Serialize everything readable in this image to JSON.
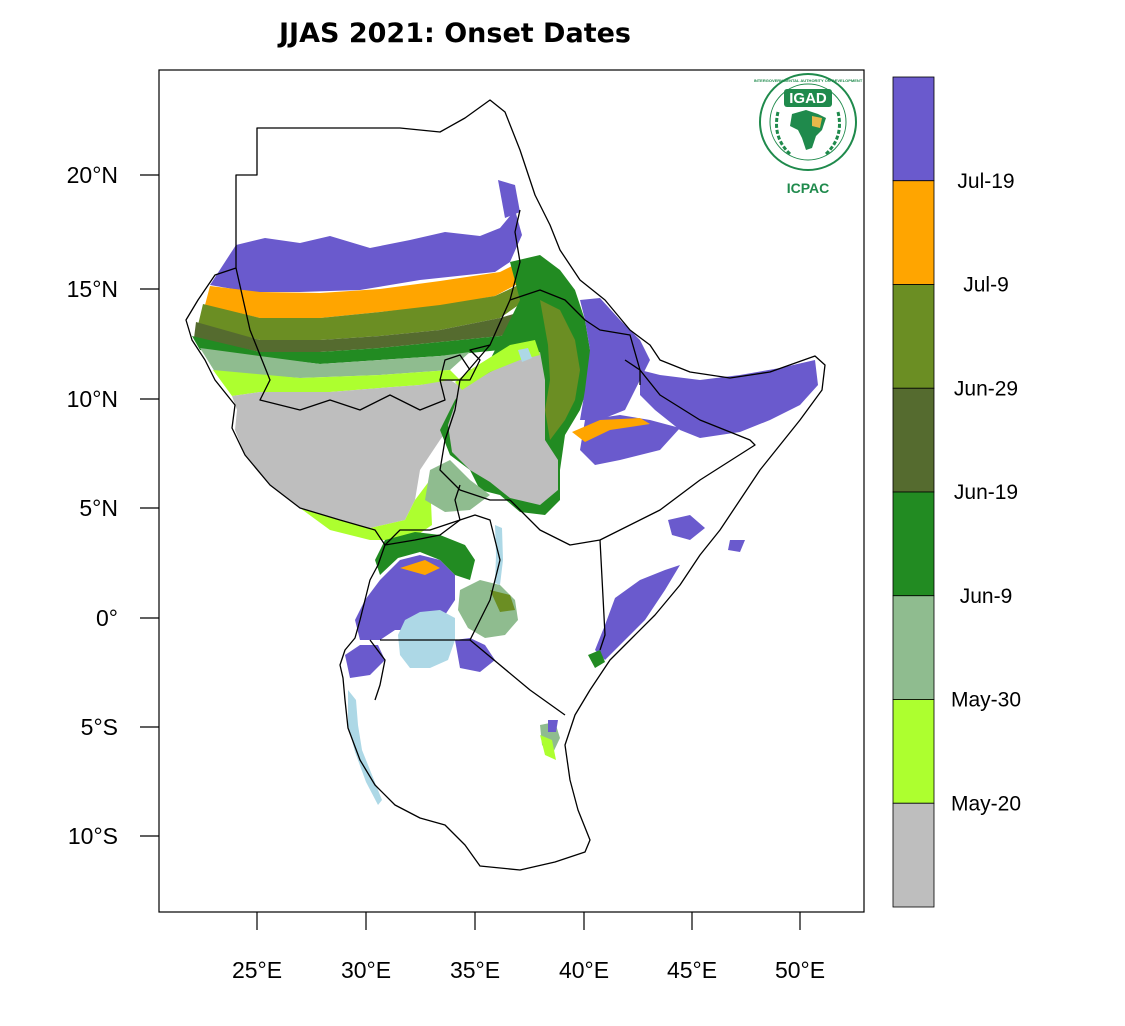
{
  "title": "JJAS 2021: Onset Dates",
  "logo": {
    "top_text": "IGAD",
    "bottom_text": "ICPAC",
    "ring_text": "INTERGOVERNMENTAL AUTHORITY ON DEVELOPMENT",
    "color": "#1f8a4c"
  },
  "axes": {
    "lat_ticks": [
      "20°N",
      "15°N",
      "10°N",
      "5°N",
      "0°",
      "5°S",
      "10°S"
    ],
    "lon_ticks": [
      "25°E",
      "30°E",
      "35°E",
      "40°E",
      "45°E",
      "50°E"
    ]
  },
  "legend": {
    "boundaries": [
      "Jul-19",
      "Jul-9",
      "Jun-29",
      "Jun-19",
      "Jun-9",
      "May-30",
      "May-20"
    ],
    "bins": [
      {
        "color": "#6a5acd",
        "range": "after Jul-19"
      },
      {
        "color": "#ffa500",
        "range": "Jul-9 to Jul-19"
      },
      {
        "color": "#6b8e23",
        "range": "Jun-29 to Jul-9"
      },
      {
        "color": "#556b2f",
        "range": "Jun-19 to Jun-29"
      },
      {
        "color": "#228b22",
        "range": "Jun-9 to Jun-19"
      },
      {
        "color": "#8fbc8f",
        "range": "May-30 to Jun-9"
      },
      {
        "color": "#adff2f",
        "range": "May-20 to May-30"
      },
      {
        "color": "#bebebe",
        "range": "before May-20"
      }
    ]
  },
  "colors": {
    "water": "#add8e6",
    "border": "#000000"
  }
}
